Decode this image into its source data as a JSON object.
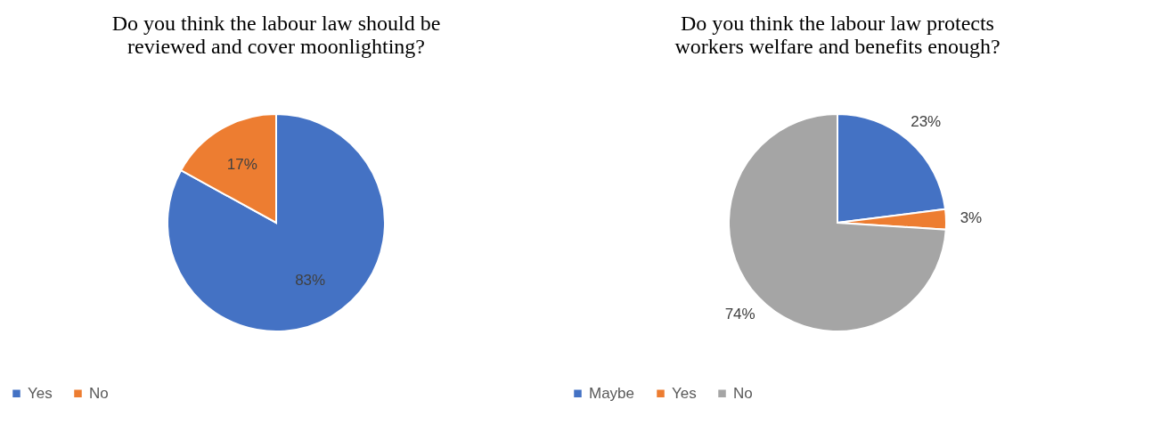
{
  "chart_data": [
    {
      "type": "pie",
      "title": "Do you think the labour law should be\nreviewed and cover moonlighting?",
      "categories": [
        "Yes",
        "No"
      ],
      "values": [
        83,
        17
      ],
      "colors": [
        "#4472c4",
        "#ed7d31"
      ],
      "value_labels": [
        "83%",
        "17%"
      ],
      "legend": "bottom"
    },
    {
      "type": "pie",
      "title": "Do you think the labour law protects\nworkers welfare and benefits enough?",
      "categories": [
        "Maybe",
        "Yes",
        "No"
      ],
      "values": [
        23,
        3,
        74
      ],
      "colors": [
        "#4472c4",
        "#ed7d31",
        "#a5a5a5"
      ],
      "value_labels": [
        "23%",
        "3%",
        "74%"
      ],
      "legend": "bottom"
    }
  ]
}
